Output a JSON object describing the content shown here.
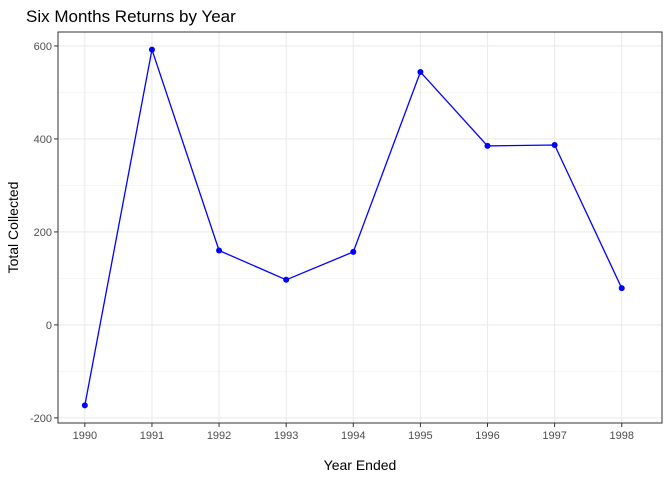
{
  "chart_data": {
    "type": "line",
    "title": "Six Months Returns by Year",
    "xlabel": "Year Ended",
    "ylabel": "Total Collected",
    "x": [
      1990,
      1991,
      1992,
      1993,
      1994,
      1995,
      1996,
      1997,
      1998
    ],
    "y": [
      -173,
      592,
      160,
      97,
      157,
      544,
      385,
      387,
      79
    ],
    "xticks": [
      "1990",
      "1991",
      "1992",
      "1993",
      "1994",
      "1995",
      "1996",
      "1997",
      "1998"
    ],
    "yticks": [
      -200,
      0,
      200,
      400,
      600
    ],
    "xlim": [
      1989.6,
      1998.6
    ],
    "ylim": [
      -211,
      630
    ],
    "grid": true,
    "line_color": "#0000ff",
    "point_color": "#0000ff"
  }
}
